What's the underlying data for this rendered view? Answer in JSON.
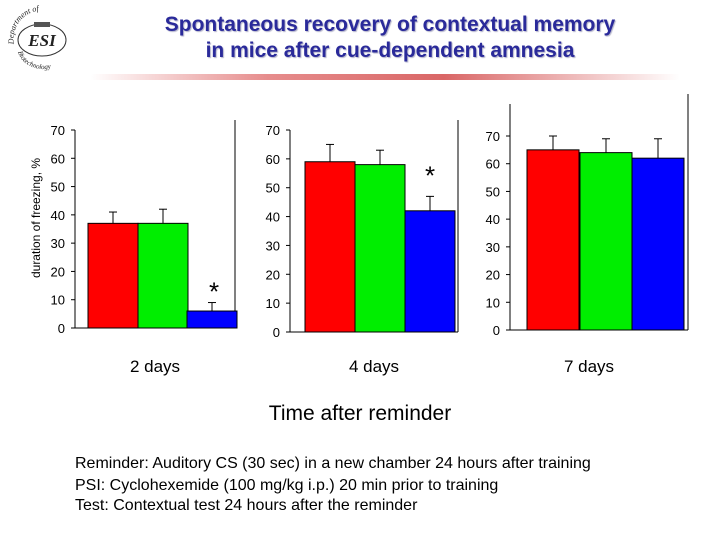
{
  "title_line1": "Spontaneous recovery of contextual memory",
  "title_line2": "in mice after cue-dependent amnesia",
  "logo_text": {
    "top": "Department of",
    "middle": "ESI",
    "bottom": "Biotechnology"
  },
  "colors": {
    "title": "#2a2a9a",
    "series1": "#ff0000",
    "series2": "#00ee00",
    "series3": "#0000ff",
    "axis": "#000000"
  },
  "captions": [
    "Reminder: Auditory CS (30 sec) in a new chamber 24 hours after training",
    "PSI: Cyclohexemide (100 mg/kg i.p.) 20 min prior to training",
    "Test: Contextual test 24 hours after the reminder"
  ],
  "x_main_label": "Time after reminder",
  "chart_data": [
    {
      "type": "bar",
      "ylabel": "duration of freezing, %",
      "xlabel": "2 days",
      "ylim": [
        0,
        70
      ],
      "yticks": [
        "0",
        "10",
        "20",
        "30",
        "40",
        "50",
        "60",
        "70"
      ],
      "values": [
        37,
        37,
        6
      ],
      "errors": [
        4,
        5,
        3
      ],
      "annotation": "*",
      "annotated_bar": 2
    },
    {
      "type": "bar",
      "xlabel": "4 days",
      "ylim": [
        0,
        70
      ],
      "yticks": [
        "0",
        "10",
        "20",
        "30",
        "40",
        "50",
        "60",
        "70"
      ],
      "values": [
        59,
        58,
        42
      ],
      "errors": [
        6,
        5,
        5
      ],
      "annotation": "*",
      "annotated_bar": 2
    },
    {
      "type": "bar",
      "xlabel": "7 days",
      "ylim": [
        0,
        70
      ],
      "yticks": [
        "0",
        "10",
        "20",
        "30",
        "40",
        "50",
        "60",
        "70"
      ],
      "values": [
        65,
        64,
        62
      ],
      "errors": [
        5,
        5,
        7
      ],
      "annotation": "",
      "annotated_bar": -1
    }
  ]
}
